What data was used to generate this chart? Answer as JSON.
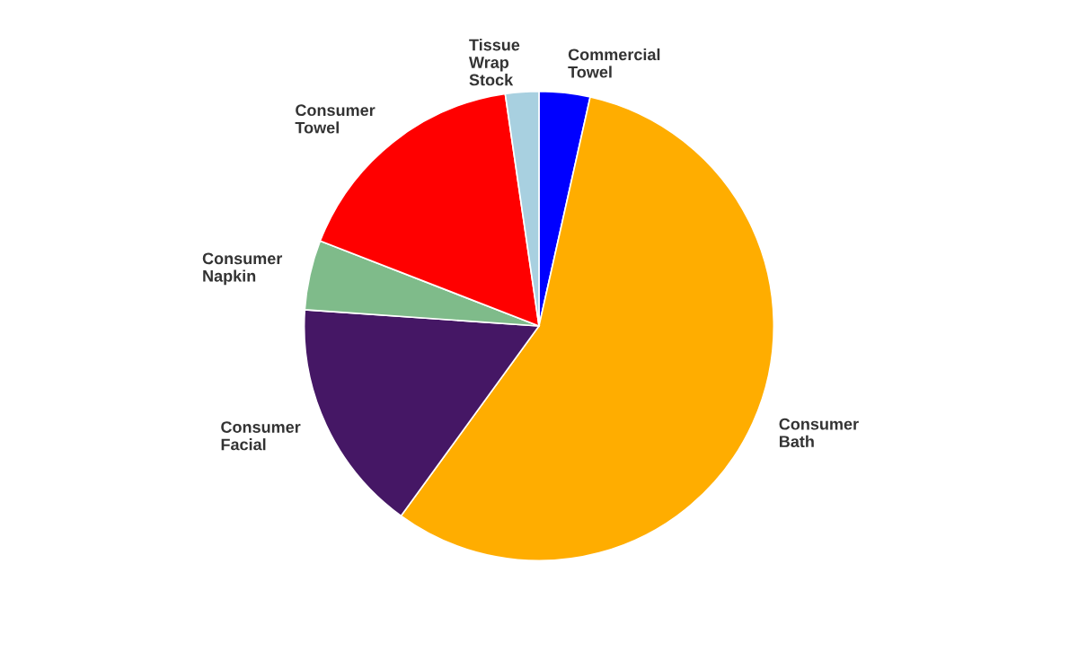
{
  "chart_data": {
    "type": "pie",
    "categories": [
      "Commercial\nTowel",
      "Consumer\nBath",
      "Consumer\nFacial",
      "Consumer\nNapkin",
      "Consumer\nTowel",
      "Tissue\nWrap\nStock"
    ],
    "values": [
      3.5,
      56.5,
      16.1,
      4.8,
      16.8,
      2.3
    ],
    "colors": [
      "#0000ff",
      "#ffad00",
      "#451765",
      "#7fbb8a",
      "#ff0000",
      "#a8d0e0"
    ]
  }
}
